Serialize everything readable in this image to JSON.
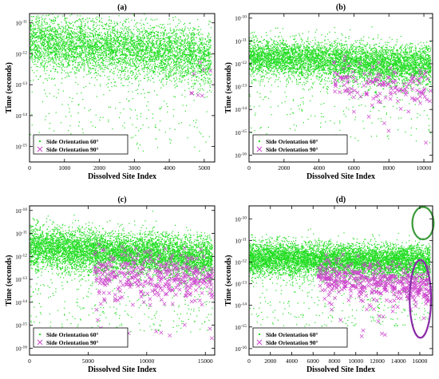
{
  "chart_data": [
    {
      "panel_label": "(a)",
      "type": "scatter",
      "xlabel": "Dissolved Site Index",
      "ylabel": "Time (seconds)",
      "xlim": [
        0,
        5300
      ],
      "ylim_log10": [
        -15.5,
        -10.7
      ],
      "x_ticks": [
        0,
        1000,
        2000,
        3000,
        4000,
        5000
      ],
      "y_tick_exponents": [
        -15,
        -14,
        -13,
        -12,
        -11
      ],
      "legend_position": "bottom-left",
      "series": [
        {
          "name": "Side Orientation 60°",
          "marker": "dot",
          "color": "#22dd22",
          "x_range": [
            0,
            5200
          ],
          "log10_center_start": -11.6,
          "log10_center_end": -12.1,
          "log10_spread": 0.45,
          "log10_min": -15.2,
          "approx_points": 5200
        },
        {
          "name": "Side Orientation 90°",
          "marker": "x",
          "color": "#cc44cc",
          "x_range": [
            4600,
            5200
          ],
          "log10_center_start": -12.9,
          "log10_center_end": -12.9,
          "log10_spread": 0.4,
          "log10_min": -13.5,
          "approx_points": 8
        }
      ]
    },
    {
      "panel_label": "(b)",
      "type": "scatter",
      "xlabel": "Dissolved Site Index",
      "ylabel": "Time (seconds)",
      "xlim": [
        0,
        10500
      ],
      "ylim_log10": [
        -16.3,
        -9.8
      ],
      "x_ticks": [
        0,
        2000,
        4000,
        6000,
        8000,
        10000
      ],
      "y_tick_exponents": [
        -16,
        -15,
        -14,
        -13,
        -12,
        -11,
        -10
      ],
      "legend_position": "bottom-left",
      "series": [
        {
          "name": "Side Orientation 60°",
          "marker": "dot",
          "color": "#22dd22",
          "x_range": [
            0,
            10400
          ],
          "log10_center_start": -11.7,
          "log10_center_end": -12.1,
          "log10_spread": 0.42,
          "log10_min": -15.5,
          "approx_points": 6000
        },
        {
          "name": "Side Orientation 90°",
          "marker": "x",
          "color": "#cc44cc",
          "x_range": [
            4800,
            10400
          ],
          "log10_center_start": -12.8,
          "log10_center_end": -13.0,
          "log10_spread": 0.45,
          "log10_min": -15.6,
          "approx_points": 150
        }
      ]
    },
    {
      "panel_label": "(c)",
      "type": "scatter",
      "xlabel": "Dissolved Site Index",
      "ylabel": "Time (seconds)",
      "xlim": [
        0,
        15800
      ],
      "ylim_log10": [
        -16.3,
        -9.8
      ],
      "x_ticks": [
        0,
        5000,
        10000,
        15000
      ],
      "y_tick_exponents": [
        -16,
        -15,
        -14,
        -13,
        -12,
        -11,
        -10
      ],
      "legend_position": "bottom-left",
      "series": [
        {
          "name": "Side Orientation 60°",
          "marker": "dot",
          "color": "#22dd22",
          "x_range": [
            0,
            15600
          ],
          "log10_center_start": -11.6,
          "log10_center_end": -12.1,
          "log10_spread": 0.45,
          "log10_min": -15.3,
          "approx_points": 7000
        },
        {
          "name": "Side Orientation 90°",
          "marker": "x",
          "color": "#cc44cc",
          "x_range": [
            5500,
            15600
          ],
          "log10_center_start": -12.7,
          "log10_center_end": -13.0,
          "log10_spread": 0.5,
          "log10_min": -15.8,
          "approx_points": 380
        }
      ]
    },
    {
      "panel_label": "(d)",
      "type": "scatter",
      "xlabel": "Dissolved Site Index",
      "ylabel": "Time (seconds)",
      "xlim": [
        0,
        17200
      ],
      "ylim_log10": [
        -16.3,
        -9.4
      ],
      "x_ticks": [
        0,
        2000,
        4000,
        6000,
        8000,
        10000,
        12000,
        14000,
        16000
      ],
      "y_tick_exponents": [
        -16,
        -15,
        -14,
        -13,
        -12,
        -11,
        -10
      ],
      "legend_position": "bottom-left",
      "series": [
        {
          "name": "Side Orientation 60°",
          "marker": "dot",
          "color": "#22dd22",
          "x_range": [
            0,
            17000
          ],
          "log10_center_start": -11.8,
          "log10_center_end": -12.0,
          "log10_spread": 0.38,
          "log10_min": -15.0,
          "approx_points": 7500
        },
        {
          "name": "Side Orientation 90°",
          "marker": "x",
          "color": "#cc44cc",
          "x_range": [
            6500,
            17000
          ],
          "log10_center_start": -12.6,
          "log10_center_end": -13.2,
          "log10_spread": 0.45,
          "log10_min": -15.8,
          "approx_points": 450
        }
      ],
      "annotations": [
        {
          "shape": "ellipse",
          "color": "#3a9a3a",
          "cx": 16300,
          "cy_log10": -10.2,
          "rx_data": 1000,
          "ry_log10": 0.75
        },
        {
          "shape": "ellipse",
          "color": "#8a2aa8",
          "cx": 16050,
          "cy_log10": -13.7,
          "rx_data": 1000,
          "ry_log10": 1.8
        }
      ]
    }
  ]
}
